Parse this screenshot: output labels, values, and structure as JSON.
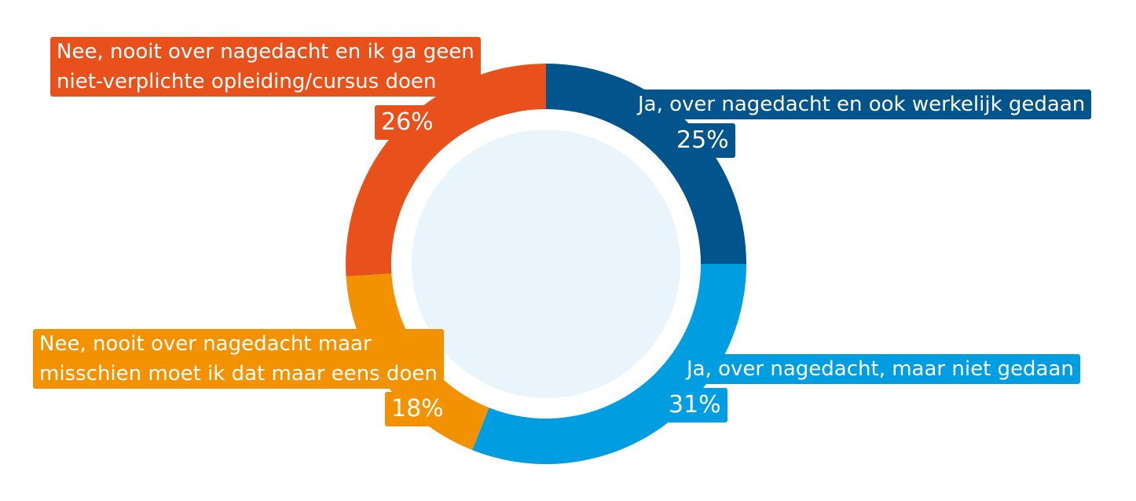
{
  "chart_data": {
    "type": "pie",
    "style": "donut",
    "slices": [
      {
        "label": "Ja, over nagedacht en ook werkelijk gedaan",
        "value": 25,
        "display": "25%",
        "color": "#02548c"
      },
      {
        "label": "Ja, over nagedacht, maar niet gedaan",
        "value": 31,
        "display": "31%",
        "color": "#009ee0"
      },
      {
        "label_lines": [
          "Nee, nooit over nagedacht maar",
          "misschien moet ik dat maar eens doen"
        ],
        "value": 18,
        "display": "18%",
        "color": "#f39200"
      },
      {
        "label_lines": [
          "Nee, nooit over nagedacht en ik ga geen",
          "niet-verplichte opleiding/cursus doen"
        ],
        "value": 26,
        "display": "26%",
        "color": "#e8511c"
      }
    ],
    "center_color": "#e9f4fc"
  }
}
